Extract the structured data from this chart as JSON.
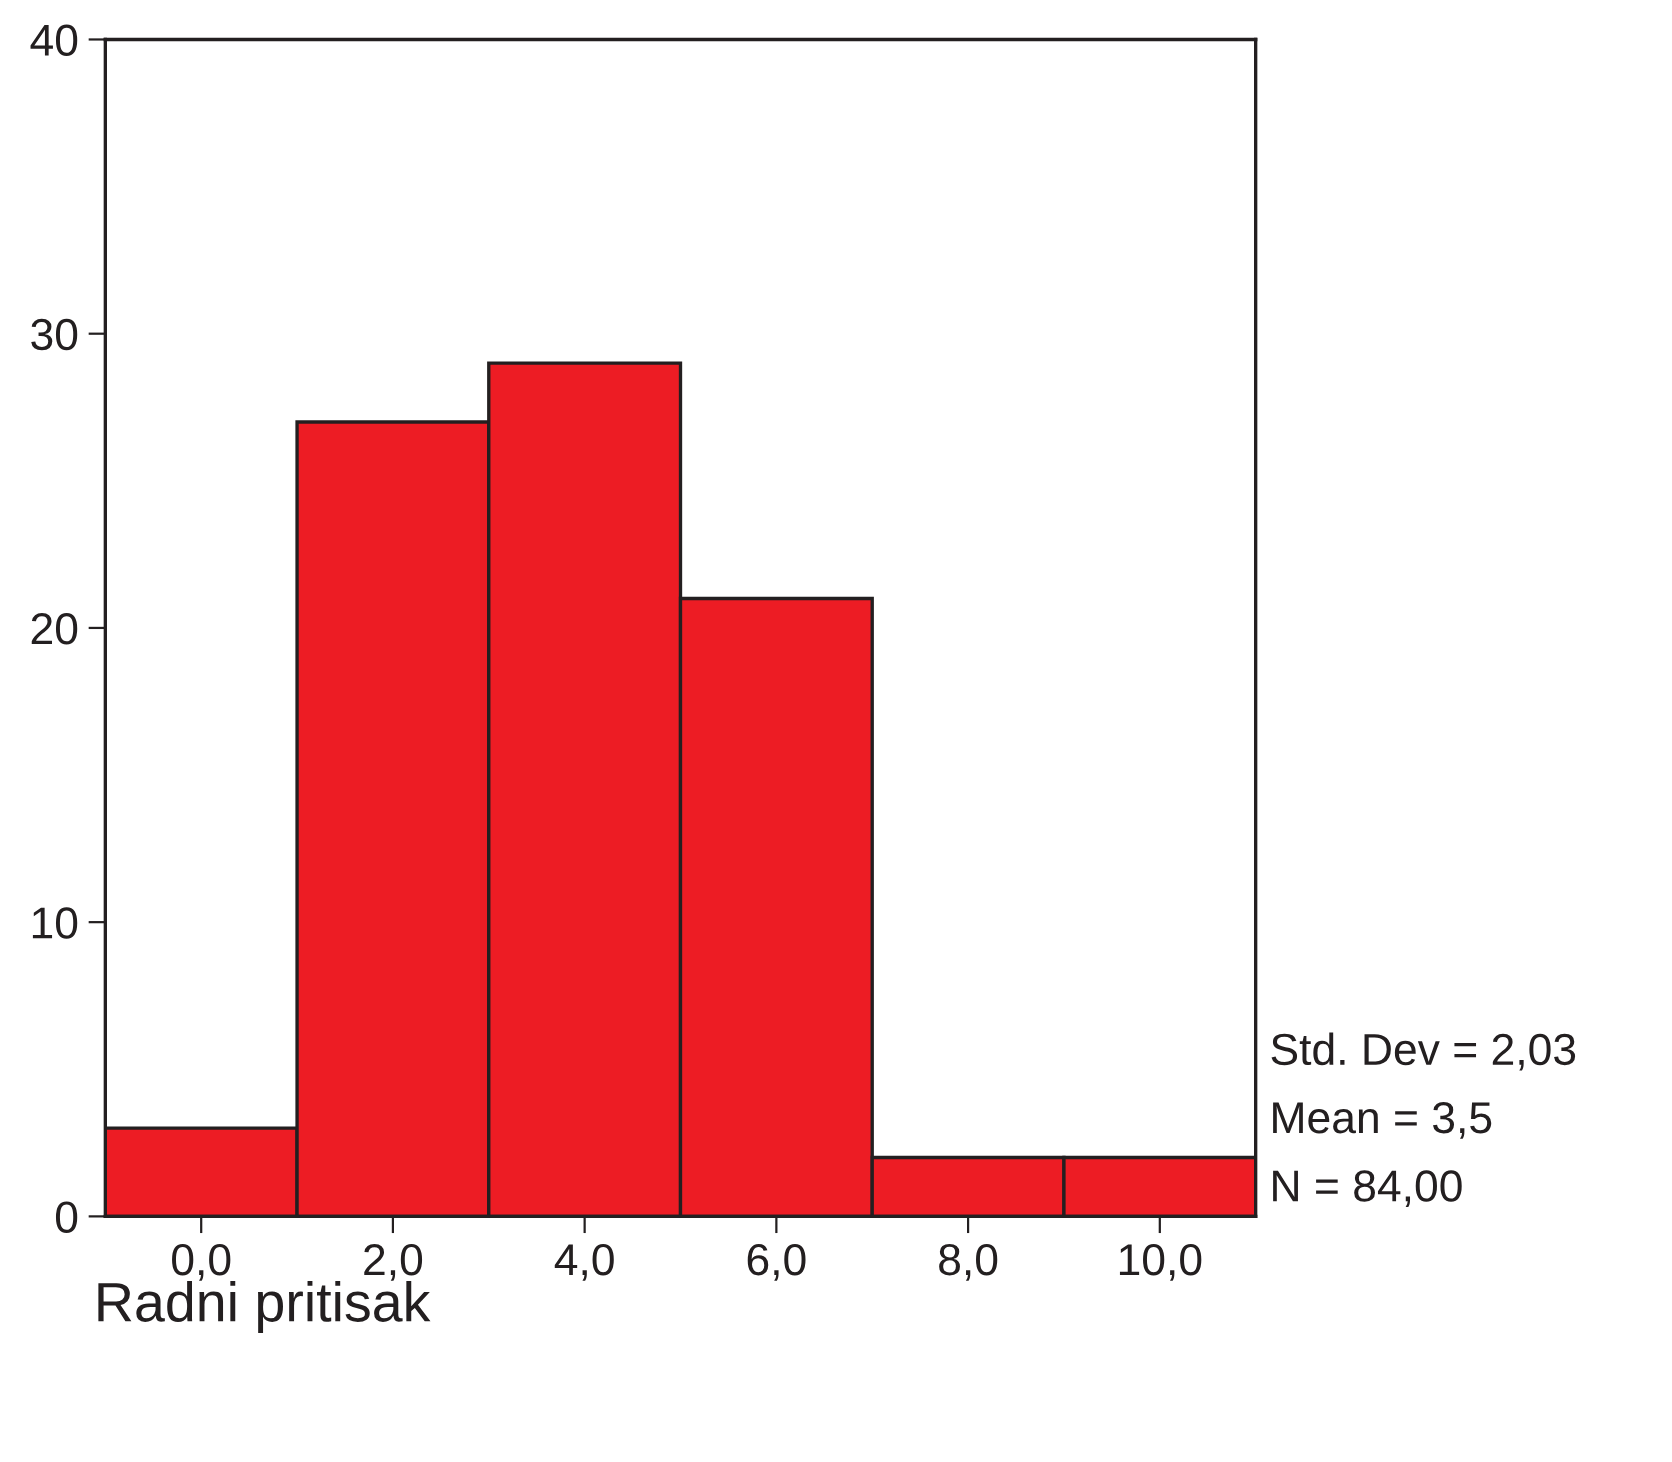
{
  "chart_data": {
    "type": "histogram",
    "xlabel": "Radni pritisak",
    "bins": [
      -1,
      1,
      3,
      5,
      7,
      9,
      11
    ],
    "values": [
      3,
      27,
      29,
      21,
      2,
      2
    ],
    "color": "#ed1c24",
    "xlim": [
      -1,
      11
    ],
    "xticks": [
      {
        "value": 0,
        "label": "0,0"
      },
      {
        "value": 2,
        "label": "2,0"
      },
      {
        "value": 4,
        "label": "4,0"
      },
      {
        "value": 6,
        "label": "6,0"
      },
      {
        "value": 8,
        "label": "8,0"
      },
      {
        "value": 10,
        "label": "10,0"
      }
    ],
    "ylim": [
      0,
      40
    ],
    "yticks": [
      0,
      10,
      20,
      30,
      40
    ],
    "grid": false,
    "annotations": [
      "Std. Dev = 2,03",
      "Mean = 3,5",
      "N = 84,00"
    ]
  }
}
